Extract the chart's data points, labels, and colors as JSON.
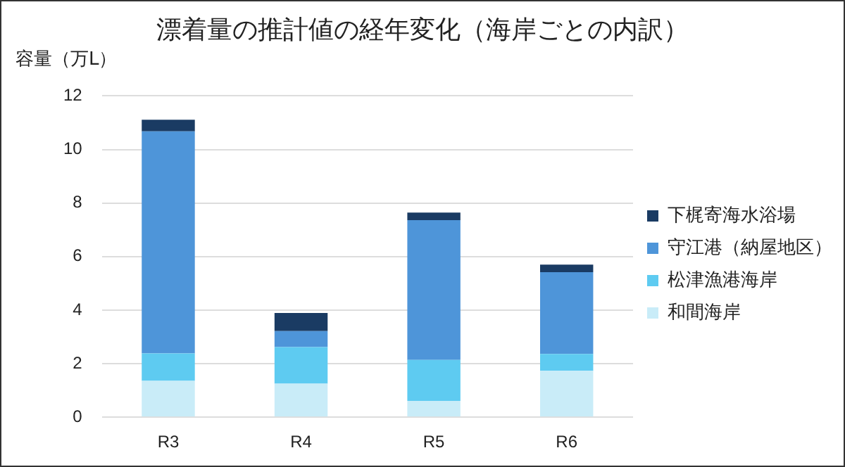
{
  "chart_data": {
    "type": "bar",
    "title": "漂着量の推計値の経年変化（海岸ごとの内訳）",
    "ylabel": "容量（万L）",
    "categories": [
      "R3",
      "R4",
      "R5",
      "R6"
    ],
    "stacked": true,
    "series": [
      {
        "name": "和間海岸",
        "color": "#c9ecf8",
        "values": [
          1.36,
          1.25,
          0.61,
          1.73
        ]
      },
      {
        "name": "松津漁港海岸",
        "color": "#5ecbf1",
        "values": [
          1.02,
          1.37,
          1.53,
          0.63
        ]
      },
      {
        "name": "守江港（納屋地区）",
        "color": "#4e95d9",
        "values": [
          8.3,
          0.6,
          5.22,
          3.06
        ]
      },
      {
        "name": "下梶寄海水浴場",
        "color": "#1a3b63",
        "values": [
          0.43,
          0.67,
          0.28,
          0.28
        ]
      }
    ],
    "ylim": [
      0,
      12
    ],
    "yticks": [
      0,
      2,
      4,
      6,
      8,
      10,
      12
    ],
    "grid": "y",
    "legend": "right"
  }
}
